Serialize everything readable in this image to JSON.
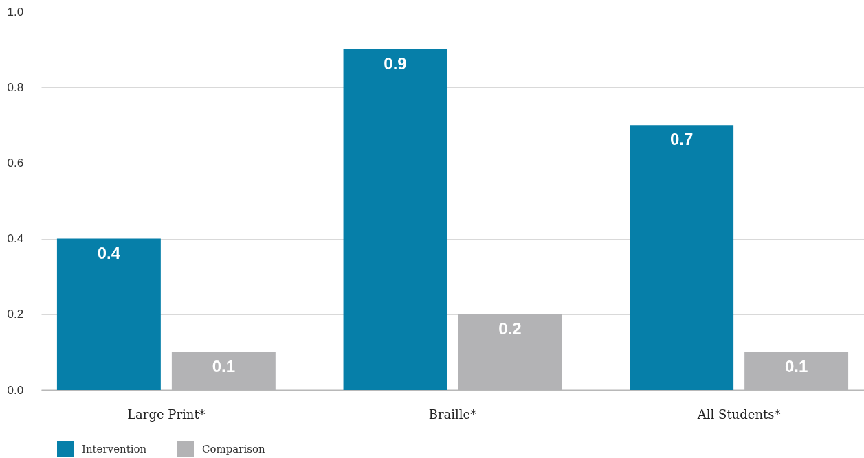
{
  "chart_data": {
    "type": "bar",
    "categories": [
      "Large Print*",
      "Braille*",
      "All Students*"
    ],
    "series": [
      {
        "name": "Intervention",
        "color": "#067fa9",
        "values": [
          0.4,
          0.9,
          0.7
        ]
      },
      {
        "name": "Comparison",
        "color": "#b3b3b5",
        "values": [
          0.1,
          0.2,
          0.1
        ]
      }
    ],
    "ylim": [
      0,
      1
    ],
    "yticks": [
      {
        "value": 0,
        "label": "0.0"
      },
      0.2,
      0.4,
      0.6,
      0.8,
      {
        "value": 1,
        "label": "1.0"
      }
    ],
    "grid": "y",
    "legend": "bottom left",
    "data_labels": true
  }
}
